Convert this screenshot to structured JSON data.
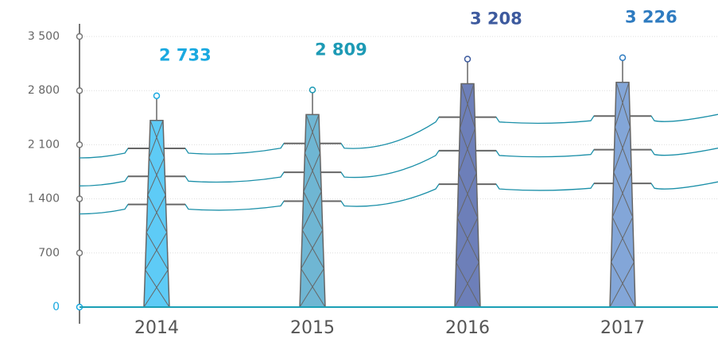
{
  "chart_data": {
    "type": "pylon-bar",
    "categories": [
      "2014",
      "2015",
      "2016",
      "2017"
    ],
    "values": [
      2733,
      2809,
      3208,
      3226
    ],
    "value_labels": [
      "2 733",
      "2 809",
      "3 208",
      "3 226"
    ],
    "colors": [
      "#5ecbf6",
      "#6fb6d3",
      "#6d7fb9",
      "#83a6d8"
    ],
    "label_colors": [
      "#1aa9e0",
      "#1d9ab5",
      "#3d5a9e",
      "#2e7bc0"
    ],
    "ylim": [
      0,
      3500
    ],
    "yticks": [
      {
        "value": 0,
        "label": "0"
      },
      {
        "value": 700,
        "label": "700"
      },
      {
        "value": 1400,
        "label": "1 400"
      },
      {
        "value": 2100,
        "label": "2 100"
      },
      {
        "value": 2800,
        "label": "2 800"
      },
      {
        "value": 3500,
        "label": "3 500"
      }
    ],
    "grid": true
  }
}
